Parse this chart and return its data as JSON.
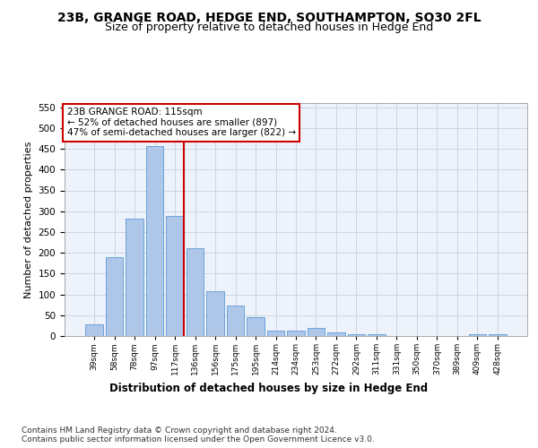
{
  "title": "23B, GRANGE ROAD, HEDGE END, SOUTHAMPTON, SO30 2FL",
  "subtitle": "Size of property relative to detached houses in Hedge End",
  "xlabel": "Distribution of detached houses by size in Hedge End",
  "ylabel": "Number of detached properties",
  "bar_labels": [
    "39sqm",
    "58sqm",
    "78sqm",
    "97sqm",
    "117sqm",
    "136sqm",
    "156sqm",
    "175sqm",
    "195sqm",
    "214sqm",
    "234sqm",
    "253sqm",
    "272sqm",
    "292sqm",
    "311sqm",
    "331sqm",
    "350sqm",
    "370sqm",
    "389sqm",
    "409sqm",
    "428sqm"
  ],
  "bar_values": [
    28,
    190,
    283,
    457,
    288,
    212,
    108,
    73,
    46,
    12,
    12,
    20,
    8,
    5,
    5,
    0,
    0,
    0,
    0,
    5,
    4
  ],
  "bar_color": "#aec6e8",
  "bar_edge_color": "#5b9bd5",
  "vline_index": 4,
  "vline_color": "#cc0000",
  "annotation_text": "23B GRANGE ROAD: 115sqm\n← 52% of detached houses are smaller (897)\n47% of semi-detached houses are larger (822) →",
  "annotation_box_color": "#ffffff",
  "annotation_box_edge": "#cc0000",
  "ylim": [
    0,
    560
  ],
  "yticks": [
    0,
    50,
    100,
    150,
    200,
    250,
    300,
    350,
    400,
    450,
    500,
    550
  ],
  "grid_color": "#c8d0e0",
  "bg_color": "#eef2fa",
  "title_fontsize": 10,
  "subtitle_fontsize": 9,
  "xlabel_fontsize": 8.5,
  "ylabel_fontsize": 8,
  "footer_text": "Contains HM Land Registry data © Crown copyright and database right 2024.\nContains public sector information licensed under the Open Government Licence v3.0.",
  "footer_fontsize": 6.5
}
